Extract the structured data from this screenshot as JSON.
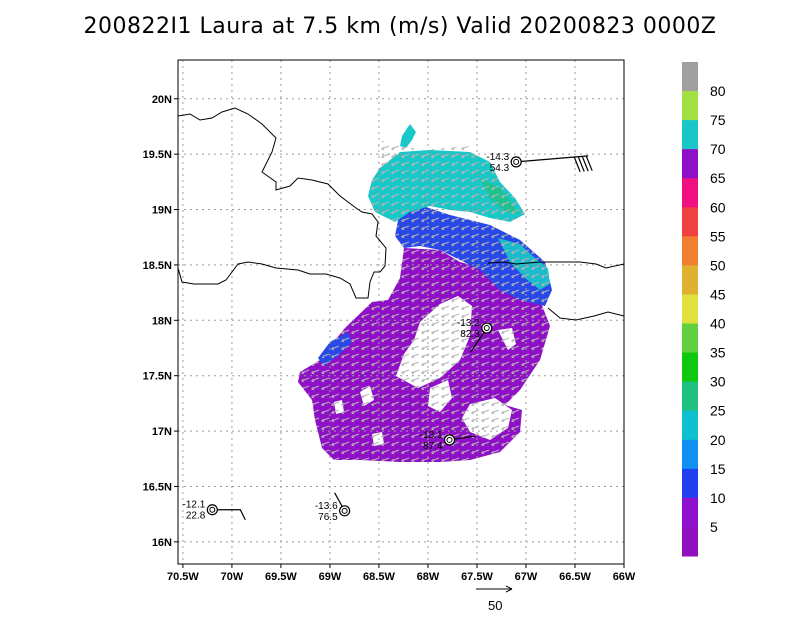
{
  "title": "200822I1 Laura at 7.5 km (m/s) Valid 20200823 0000Z",
  "axes": {
    "lat_labels": [
      "20N",
      "19.5N",
      "19N",
      "18.5N",
      "18N",
      "17.5N",
      "17N",
      "16.5N",
      "16N"
    ],
    "lat_values": [
      20,
      19.5,
      19,
      18.5,
      18,
      17.5,
      17,
      16.5,
      16
    ],
    "lon_labels": [
      "70.5W",
      "70W",
      "69.5W",
      "69W",
      "68.5W",
      "68W",
      "67.5W",
      "67W",
      "66.5W",
      "66W"
    ],
    "lon_values": [
      -70.5,
      -70,
      -69.5,
      -69,
      -68.5,
      -68,
      -67.5,
      -67,
      -66.5,
      -66
    ],
    "lat_range": [
      15.8,
      20.35
    ],
    "lon_range": [
      -70.55,
      -66.0
    ],
    "grid": true
  },
  "colorbar": {
    "levels": [
      "80",
      "75",
      "70",
      "65",
      "60",
      "55",
      "50",
      "45",
      "40",
      "35",
      "30",
      "25",
      "20",
      "15",
      "10",
      "5"
    ],
    "colors": [
      "#a0a0a0",
      "#a0e040",
      "#18c8c8",
      "#9010c8",
      "#f01080",
      "#f04040",
      "#f08030",
      "#e0b030",
      "#e0e040",
      "#60d040",
      "#10c810",
      "#20c080",
      "#10c0d0",
      "#1090f0",
      "#2040f0",
      "#9010d0",
      "#9010c0"
    ]
  },
  "observations": [
    {
      "top": "-14.3",
      "bottom": "54.3",
      "lon": -67.1,
      "lat": 19.43,
      "barb": "east-flags"
    },
    {
      "top": "-13.2",
      "bottom": "82.3",
      "lon": -67.4,
      "lat": 17.93,
      "barb": "southwest"
    },
    {
      "top": "-13.1",
      "bottom": "87.4",
      "lon": -67.78,
      "lat": 16.92,
      "barb": "east"
    },
    {
      "top": "-12.1",
      "bottom": "22.8",
      "lon": -70.2,
      "lat": 16.29,
      "barb": "east-short"
    },
    {
      "top": "-13.6",
      "bottom": "76.5",
      "lon": -68.85,
      "lat": 16.28,
      "barb": "northwest"
    }
  ],
  "scale_vector": {
    "label": "50"
  },
  "colors": {
    "purple": "#9010c8",
    "blue": "#2848e8",
    "cyan": "#18c8c8",
    "arrow": "#b8b8b8",
    "coast": "#000000",
    "grid": "#9a9a9a"
  }
}
